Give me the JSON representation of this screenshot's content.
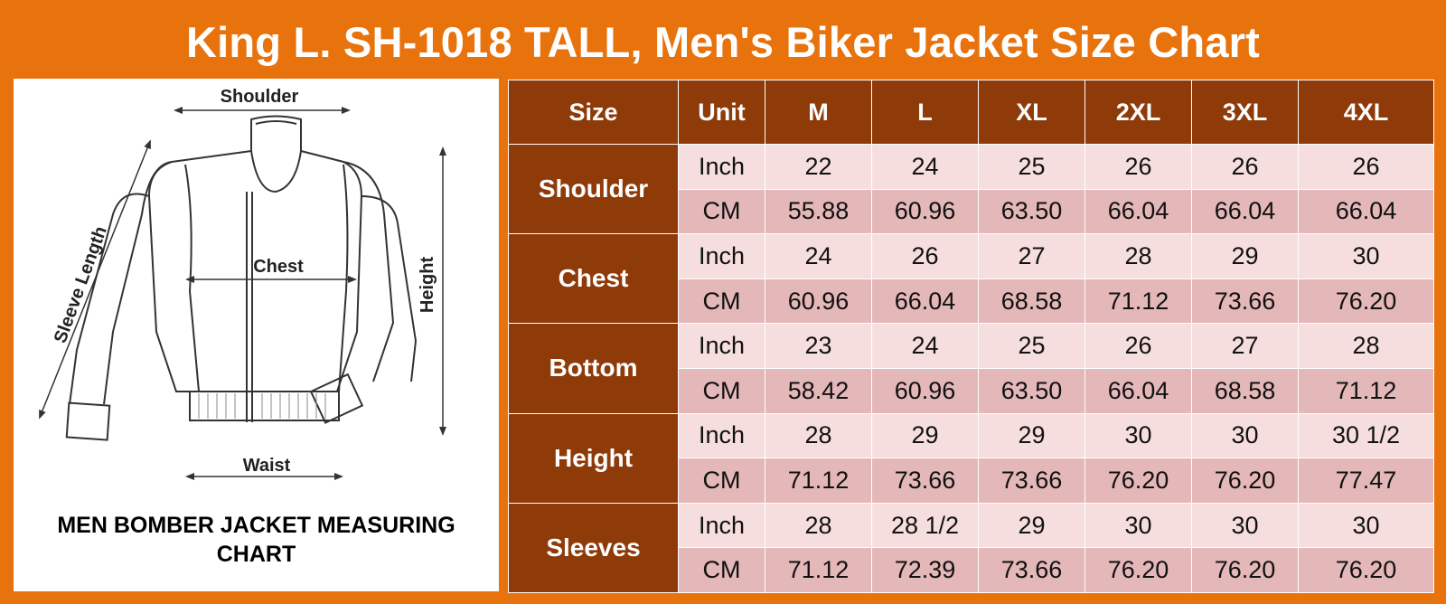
{
  "title": "King L. SH-1018 TALL, Men's Biker Jacket Size Chart",
  "diagram": {
    "labels": {
      "shoulder": "Shoulder",
      "sleeve_length": "Sleeve Length",
      "chest": "Chest",
      "height": "Height",
      "waist": "Waist"
    },
    "caption_line1": "MEN BOMBER JACKET MEASURING",
    "caption_line2": "CHART"
  },
  "table": {
    "headers": [
      "Size",
      "Unit",
      "M",
      "L",
      "XL",
      "2XL",
      "3XL",
      "4XL"
    ],
    "rows": [
      {
        "measure": "Shoulder",
        "inch_unit": "Inch",
        "cm_unit": "CM",
        "inch": [
          "22",
          "24",
          "25",
          "26",
          "26",
          "26"
        ],
        "cm": [
          "55.88",
          "60.96",
          "63.50",
          "66.04",
          "66.04",
          "66.04"
        ]
      },
      {
        "measure": "Chest",
        "inch_unit": "Inch",
        "cm_unit": "CM",
        "inch": [
          "24",
          "26",
          "27",
          "28",
          "29",
          "30"
        ],
        "cm": [
          "60.96",
          "66.04",
          "68.58",
          "71.12",
          "73.66",
          "76.20"
        ]
      },
      {
        "measure": "Bottom",
        "inch_unit": "Inch",
        "cm_unit": "CM",
        "inch": [
          "23",
          "24",
          "25",
          "26",
          "27",
          "28"
        ],
        "cm": [
          "58.42",
          "60.96",
          "63.50",
          "66.04",
          "68.58",
          "71.12"
        ]
      },
      {
        "measure": "Height",
        "inch_unit": "Inch",
        "cm_unit": "CM",
        "inch": [
          "28",
          "29",
          "29",
          "30",
          "30",
          "30 1/2"
        ],
        "cm": [
          "71.12",
          "73.66",
          "73.66",
          "76.20",
          "76.20",
          "77.47"
        ]
      },
      {
        "measure": "Sleeves",
        "inch_unit": "Inch",
        "cm_unit": "CM",
        "inch": [
          "28",
          "28 1/2",
          "29",
          "30",
          "30",
          "30"
        ],
        "cm": [
          "71.12",
          "72.39",
          "73.66",
          "76.20",
          "76.20",
          "76.20"
        ]
      }
    ]
  },
  "colors": {
    "background": "#e8720c",
    "header_brown": "#8f3a09",
    "inch_row": "#f6dede",
    "cm_row": "#e4b7b8"
  }
}
